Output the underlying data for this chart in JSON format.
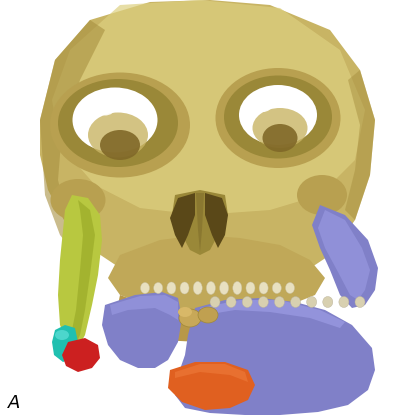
{
  "label": "A",
  "label_fontsize": 13,
  "label_color": "#000000",
  "background_color": "#ffffff",
  "figsize": [
    3.95,
    4.18
  ],
  "dpi": 100,
  "skull_color": "#d4c47a",
  "skull_dark": "#a89050",
  "skull_mid": "#c0aa60",
  "fragment_colors": {
    "ramus_left": "#b8c840",
    "mandible_main": "#8080c8",
    "fragment_cyan": "#20c0b0",
    "fragment_red": "#cc2020",
    "fragment_orange": "#e06020"
  }
}
